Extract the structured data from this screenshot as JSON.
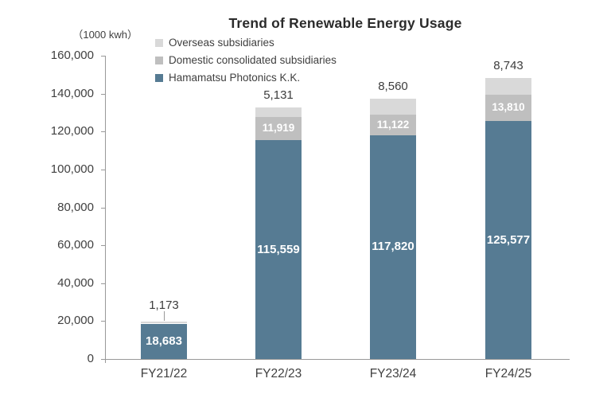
{
  "title": "Trend of Renewable Energy Usage",
  "unit_label": "（1000 kwh）",
  "legend": {
    "position": "top-left",
    "items": [
      {
        "label": "Overseas  subsidiaries",
        "color": "#d9d9d9"
      },
      {
        "label": "Domestic consolidated subsidiaries",
        "color": "#bfbfbf"
      },
      {
        "label": "Hamamatsu Photonics K.K.",
        "color": "#567b93"
      }
    ]
  },
  "chart_data": {
    "type": "bar",
    "stacked": true,
    "title": "Trend of Renewable Energy Usage",
    "unit_label": "（1000 kwh）",
    "xlabel": "",
    "ylabel": "(1000 kwh)",
    "categories": [
      "FY21/22",
      "FY22/23",
      "FY23/24",
      "FY24/25"
    ],
    "series": [
      {
        "name": "Hamamatsu Photonics K.K.",
        "color": "#567b93",
        "label_position": "inside",
        "label_font_px": 15,
        "values": [
          18683,
          115559,
          117820,
          125577
        ]
      },
      {
        "name": "Domestic consolidated subsidiaries",
        "color": "#bfbfbf",
        "label_position": "inside",
        "label_font_px": 13.5,
        "values": [
          null,
          11919,
          11122,
          13810
        ]
      },
      {
        "name": "Overseas subsidiaries",
        "color": "#d9d9d9",
        "label_position": "above",
        "label_font_px": 15,
        "values": [
          1173,
          5131,
          8560,
          8743
        ]
      }
    ],
    "ylim": [
      0,
      160000
    ],
    "yticks": [
      0,
      20000,
      40000,
      60000,
      80000,
      100000,
      120000,
      140000,
      160000
    ],
    "ytick_labels": [
      "0",
      "20,000",
      "40,000",
      "60,000",
      "80,000",
      "100,000",
      "120,000",
      "140,000",
      "160,000"
    ],
    "grid": false,
    "legend_position": "top-left",
    "callout": {
      "category": "FY21/22",
      "series": "Overseas subsidiaries",
      "value": 1173,
      "label": "1,173",
      "note": "thin top segment labeled above the bar with a leader line"
    }
  }
}
